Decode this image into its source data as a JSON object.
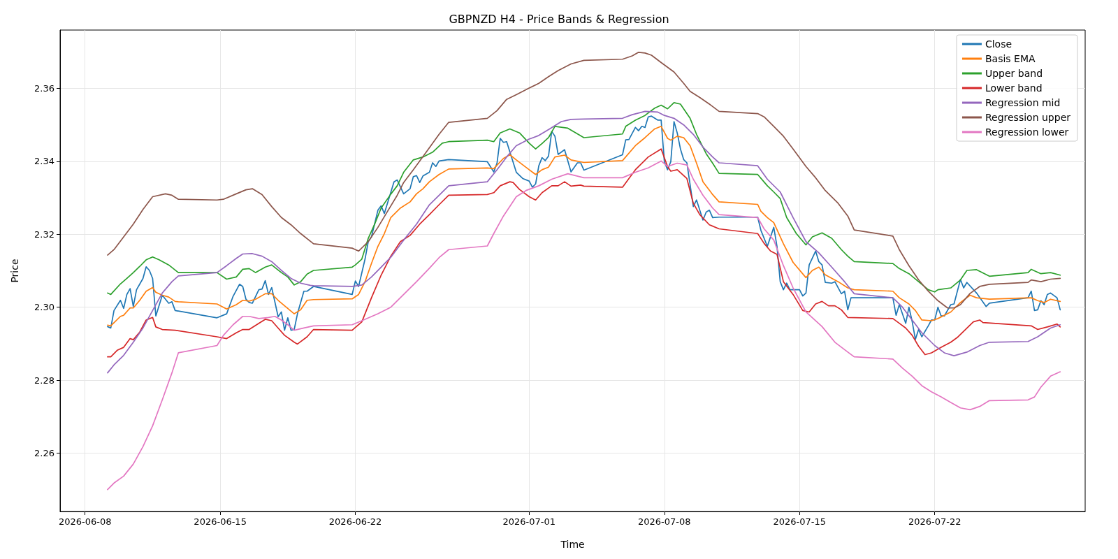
{
  "chart_data": {
    "type": "line",
    "title": "GBPNZD H4 - Price Bands & Regression",
    "xlabel": "Time",
    "ylabel": "Price",
    "xlim": [
      "2026-06-06T17:00",
      "2026-07-29T19:00"
    ],
    "xticks": [
      "2026-06-08",
      "2026-06-15",
      "2026-06-22",
      "2026-07-01",
      "2026-07-08",
      "2026-07-15",
      "2026-07-22"
    ],
    "ylim": [
      2.244,
      2.376
    ],
    "yticks": [
      2.26,
      2.28,
      {
        "value": 2.3,
        "label": "2.30"
      },
      2.32,
      2.34,
      2.36
    ],
    "grid": true,
    "legend": "top right",
    "line_style": "solid",
    "series": [
      {
        "name": "Close",
        "color": "#1f77b4",
        "x": [
          "2026-06-09T04:00",
          "2026-06-09T08:00",
          "2026-06-09T12:00",
          "2026-06-09T20:00",
          "2026-06-10T00:00",
          "2026-06-10T04:00",
          "2026-06-10T08:00",
          "2026-06-10T12:00",
          "2026-06-10T16:00",
          "2026-06-11T00:00",
          "2026-06-11T04:00",
          "2026-06-11T08:00",
          "2026-06-11T12:00",
          "2026-06-11T16:00",
          "2026-06-12T00:00",
          "2026-06-12T08:00",
          "2026-06-12T12:00",
          "2026-06-12T16:00",
          "2026-06-14T20:00",
          "2026-06-15T08:00",
          "2026-06-15T16:00",
          "2026-06-16T00:00",
          "2026-06-16T04:00",
          "2026-06-16T08:00",
          "2026-06-16T12:00",
          "2026-06-16T16:00",
          "2026-06-17T00:00",
          "2026-06-17T04:00",
          "2026-06-17T08:00",
          "2026-06-17T12:00",
          "2026-06-17T16:00",
          "2026-06-18T00:00",
          "2026-06-18T04:00",
          "2026-06-18T08:00",
          "2026-06-18T12:00",
          "2026-06-18T16:00",
          "2026-06-18T20:00",
          "2026-06-19T00:00",
          "2026-06-19T08:00",
          "2026-06-19T12:00",
          "2026-06-19T20:00",
          "2026-06-21T20:00",
          "2026-06-22T00:00",
          "2026-06-22T04:00",
          "2026-06-22T12:00",
          "2026-06-22T16:00",
          "2026-06-22T20:00",
          "2026-06-23T04:00",
          "2026-06-23T08:00",
          "2026-06-23T12:00",
          "2026-06-24T00:00",
          "2026-06-24T04:00",
          "2026-06-24T12:00",
          "2026-06-24T20:00",
          "2026-06-25T00:00",
          "2026-06-25T04:00",
          "2026-06-25T08:00",
          "2026-06-25T12:00",
          "2026-06-25T20:00",
          "2026-06-26T00:00",
          "2026-06-26T04:00",
          "2026-06-26T08:00",
          "2026-06-26T20:00",
          "2026-06-28T20:00",
          "2026-06-29T04:00",
          "2026-06-29T08:00",
          "2026-06-29T12:00",
          "2026-06-29T16:00",
          "2026-06-29T20:00",
          "2026-06-30T08:00",
          "2026-06-30T16:00",
          "2026-07-01T00:00",
          "2026-07-01T04:00",
          "2026-07-01T08:00",
          "2026-07-01T12:00",
          "2026-07-01T16:00",
          "2026-07-01T20:00",
          "2026-07-02T00:00",
          "2026-07-02T04:00",
          "2026-07-02T08:00",
          "2026-07-02T12:00",
          "2026-07-02T20:00",
          "2026-07-03T04:00",
          "2026-07-03T12:00",
          "2026-07-03T16:00",
          "2026-07-03T20:00",
          "2026-07-05T20:00",
          "2026-07-06T00:00",
          "2026-07-06T04:00",
          "2026-07-06T12:00",
          "2026-07-06T16:00",
          "2026-07-06T20:00",
          "2026-07-07T00:00",
          "2026-07-07T04:00",
          "2026-07-07T08:00",
          "2026-07-07T16:00",
          "2026-07-07T20:00",
          "2026-07-08T00:00",
          "2026-07-08T04:00",
          "2026-07-08T08:00",
          "2026-07-08T12:00",
          "2026-07-08T16:00",
          "2026-07-08T20:00",
          "2026-07-09T00:00",
          "2026-07-09T04:00",
          "2026-07-09T12:00",
          "2026-07-09T16:00",
          "2026-07-10T00:00",
          "2026-07-10T04:00",
          "2026-07-10T08:00",
          "2026-07-10T12:00",
          "2026-07-10T20:00",
          "2026-07-12T20:00",
          "2026-07-13T00:00",
          "2026-07-13T08:00",
          "2026-07-13T16:00",
          "2026-07-13T20:00",
          "2026-07-14T00:00",
          "2026-07-14T04:00",
          "2026-07-14T08:00",
          "2026-07-14T12:00",
          "2026-07-15T00:00",
          "2026-07-15T04:00",
          "2026-07-15T08:00",
          "2026-07-15T12:00",
          "2026-07-15T20:00",
          "2026-07-16T00:00",
          "2026-07-16T04:00",
          "2026-07-16T08:00",
          "2026-07-16T16:00",
          "2026-07-16T20:00",
          "2026-07-17T04:00",
          "2026-07-17T08:00",
          "2026-07-17T12:00",
          "2026-07-17T16:00",
          "2026-07-19T20:00",
          "2026-07-20T00:00",
          "2026-07-20T04:00",
          "2026-07-20T12:00",
          "2026-07-20T16:00",
          "2026-07-20T20:00",
          "2026-07-21T00:00",
          "2026-07-21T04:00",
          "2026-07-21T08:00",
          "2026-07-21T16:00",
          "2026-07-21T20:00",
          "2026-07-22T00:00",
          "2026-07-22T04:00",
          "2026-07-22T08:00",
          "2026-07-22T12:00",
          "2026-07-22T20:00",
          "2026-07-23T00:00",
          "2026-07-23T08:00",
          "2026-07-23T12:00",
          "2026-07-23T16:00",
          "2026-07-24T04:00",
          "2026-07-24T16:00",
          "2026-07-24T20:00",
          "2026-07-26T20:00",
          "2026-07-27T00:00",
          "2026-07-27T04:00",
          "2026-07-27T08:00",
          "2026-07-27T12:00",
          "2026-07-27T16:00",
          "2026-07-27T20:00",
          "2026-07-28T00:00",
          "2026-07-28T08:00",
          "2026-07-28T12:00"
        ],
        "values": [
          2.2947,
          2.2943,
          2.2991,
          2.3019,
          2.2997,
          2.3035,
          2.3051,
          2.3002,
          2.3048,
          2.3079,
          2.3111,
          2.3101,
          2.3079,
          2.2976,
          2.3033,
          2.3011,
          2.3015,
          2.2991,
          2.2971,
          2.2982,
          2.303,
          2.3063,
          2.3057,
          2.3022,
          2.3013,
          2.3011,
          2.3048,
          2.305,
          2.3073,
          2.3035,
          2.3054,
          2.2974,
          2.2987,
          2.2937,
          2.2971,
          2.2937,
          2.2939,
          2.2982,
          2.3044,
          2.3044,
          2.3057,
          2.3035,
          2.3072,
          2.3057,
          2.3132,
          2.318,
          2.3193,
          2.3266,
          2.3278,
          2.3257,
          2.3344,
          2.3349,
          2.3311,
          2.3325,
          2.3358,
          2.3361,
          2.3342,
          2.336,
          2.337,
          2.3396,
          2.3386,
          2.3401,
          2.3405,
          2.3399,
          2.3371,
          2.3395,
          2.3463,
          2.3452,
          2.3454,
          2.337,
          2.3353,
          2.3346,
          2.3329,
          2.3338,
          2.3388,
          2.341,
          2.3402,
          2.3414,
          2.3482,
          2.3469,
          2.3419,
          2.3432,
          2.3371,
          2.3396,
          2.3396,
          2.3376,
          2.3418,
          2.3459,
          2.346,
          2.3493,
          2.3484,
          2.3496,
          2.3493,
          2.3522,
          2.3524,
          2.3513,
          2.3513,
          2.3399,
          2.3377,
          2.3399,
          2.3509,
          2.3478,
          2.3434,
          2.3405,
          2.3396,
          2.3276,
          2.3294,
          2.3239,
          2.3261,
          2.3266,
          2.3246,
          2.3247,
          2.3247,
          2.3211,
          2.3167,
          2.3219,
          2.3167,
          2.307,
          2.3048,
          2.3066,
          2.3048,
          2.3048,
          2.3031,
          2.3039,
          2.3116,
          2.3154,
          2.3125,
          2.3116,
          2.3068,
          2.3066,
          2.307,
          2.3037,
          2.3044,
          2.2993,
          2.3026,
          2.3026,
          2.2978,
          2.3007,
          2.2956,
          2.3,
          2.2961,
          2.2912,
          2.2939,
          2.2919,
          2.2949,
          2.2965,
          2.2965,
          2.3,
          2.2976,
          2.2976,
          2.3007,
          2.3009,
          2.3076,
          2.3053,
          2.3068,
          2.3039,
          2.3002,
          2.3011,
          2.3026,
          2.3044,
          2.2991,
          2.2993,
          2.3018,
          2.3007,
          2.3035,
          2.3039,
          2.3026,
          2.2993
        ]
      },
      {
        "name": "Basis EMA",
        "color": "#ff7f0e",
        "x": [
          "2026-06-09T04:00",
          "2026-06-09T08:00",
          "2026-06-09T20:00",
          "2026-06-10T00:00",
          "2026-06-10T08:00",
          "2026-06-10T12:00",
          "2026-06-10T20:00",
          "2026-06-11T04:00",
          "2026-06-11T12:00",
          "2026-06-11T16:00",
          "2026-06-12T00:00",
          "2026-06-12T08:00",
          "2026-06-12T16:00",
          "2026-06-12T20:00",
          "2026-06-14T20:00",
          "2026-06-15T08:00",
          "2026-06-15T20:00",
          "2026-06-16T04:00",
          "2026-06-16T12:00",
          "2026-06-16T20:00",
          "2026-06-17T08:00",
          "2026-06-17T16:00",
          "2026-06-18T00:00",
          "2026-06-18T08:00",
          "2026-06-18T20:00",
          "2026-06-19T04:00",
          "2026-06-19T12:00",
          "2026-06-19T20:00",
          "2026-06-21T20:00",
          "2026-06-22T04:00",
          "2026-06-22T12:00",
          "2026-06-22T20:00",
          "2026-06-23T04:00",
          "2026-06-23T12:00",
          "2026-06-23T20:00",
          "2026-06-24T08:00",
          "2026-06-24T20:00",
          "2026-06-25T04:00",
          "2026-06-25T12:00",
          "2026-06-25T20:00",
          "2026-06-26T08:00",
          "2026-06-26T20:00",
          "2026-06-28T20:00",
          "2026-06-29T04:00",
          "2026-06-29T16:00",
          "2026-06-30T00:00",
          "2026-06-30T08:00",
          "2026-07-01T00:00",
          "2026-07-01T08:00",
          "2026-07-01T16:00",
          "2026-07-02T00:00",
          "2026-07-02T08:00",
          "2026-07-02T20:00",
          "2026-07-03T04:00",
          "2026-07-03T20:00",
          "2026-07-05T20:00",
          "2026-07-06T12:00",
          "2026-07-07T00:00",
          "2026-07-07T12:00",
          "2026-07-07T20:00",
          "2026-07-08T04:00",
          "2026-07-08T08:00",
          "2026-07-08T16:00",
          "2026-07-09T00:00",
          "2026-07-09T08:00",
          "2026-07-09T16:00",
          "2026-07-10T00:00",
          "2026-07-10T12:00",
          "2026-07-10T20:00",
          "2026-07-12T20:00",
          "2026-07-13T00:00",
          "2026-07-13T08:00",
          "2026-07-13T16:00",
          "2026-07-14T04:00",
          "2026-07-14T16:00",
          "2026-07-15T08:00",
          "2026-07-15T16:00",
          "2026-07-16T00:00",
          "2026-07-16T08:00",
          "2026-07-17T00:00",
          "2026-07-17T12:00",
          "2026-07-17T20:00",
          "2026-07-19T20:00",
          "2026-07-20T04:00",
          "2026-07-20T16:00",
          "2026-07-21T00:00",
          "2026-07-21T08:00",
          "2026-07-21T20:00",
          "2026-07-22T04:00",
          "2026-07-22T20:00",
          "2026-07-23T08:00",
          "2026-07-23T20:00",
          "2026-07-24T04:00",
          "2026-07-24T20:00",
          "2026-07-27T00:00",
          "2026-07-27T08:00",
          "2026-07-27T16:00",
          "2026-07-28T00:00",
          "2026-07-28T12:00"
        ],
        "values": [
          2.2951,
          2.2949,
          2.2975,
          2.2978,
          2.2998,
          2.2998,
          2.3019,
          2.3044,
          2.3054,
          2.3041,
          2.3033,
          2.3028,
          2.3016,
          2.3015,
          2.3009,
          2.2995,
          2.3007,
          2.3019,
          2.3017,
          2.3022,
          2.3037,
          2.3037,
          2.3019,
          2.3004,
          2.2982,
          2.2993,
          2.3019,
          2.3021,
          2.3023,
          2.3035,
          2.307,
          2.312,
          2.3167,
          2.3202,
          2.3246,
          2.3272,
          2.3289,
          2.3311,
          2.3325,
          2.3344,
          2.3364,
          2.3379,
          2.3382,
          2.338,
          2.3408,
          2.3418,
          2.3404,
          2.3377,
          2.3364,
          2.3377,
          2.3384,
          2.3412,
          2.3417,
          2.3404,
          2.3397,
          2.3402,
          2.3443,
          2.3465,
          2.3489,
          2.3496,
          2.3463,
          2.3458,
          2.3469,
          2.3465,
          2.3443,
          2.3395,
          2.3344,
          2.3309,
          2.3289,
          2.3282,
          2.3263,
          2.3246,
          2.3232,
          2.3174,
          2.3123,
          2.3081,
          2.3101,
          2.311,
          2.3089,
          2.307,
          2.3053,
          2.3048,
          2.3044,
          2.3026,
          2.3009,
          2.2991,
          2.2965,
          2.2963,
          2.2969,
          2.2987,
          2.3013,
          2.3033,
          2.3026,
          2.3022,
          2.3026,
          2.3018,
          2.3013,
          2.3022,
          2.3016
        ]
      },
      {
        "name": "Upper band",
        "color": "#2ca02c",
        "x": [
          "2026-06-09T04:00",
          "2026-06-09T08:00",
          "2026-06-09T20:00",
          "2026-06-10T04:00",
          "2026-06-10T12:00",
          "2026-06-10T20:00",
          "2026-06-11T04:00",
          "2026-06-11T12:00",
          "2026-06-11T20:00",
          "2026-06-12T08:00",
          "2026-06-12T20:00",
          "2026-06-14T20:00",
          "2026-06-15T08:00",
          "2026-06-15T20:00",
          "2026-06-16T04:00",
          "2026-06-16T12:00",
          "2026-06-16T20:00",
          "2026-06-17T08:00",
          "2026-06-17T16:00",
          "2026-06-18T04:00",
          "2026-06-18T12:00",
          "2026-06-18T20:00",
          "2026-06-19T04:00",
          "2026-06-19T12:00",
          "2026-06-19T20:00",
          "2026-06-21T20:00",
          "2026-06-22T00:00",
          "2026-06-22T08:00",
          "2026-06-22T16:00",
          "2026-06-23T00:00",
          "2026-06-23T08:00",
          "2026-06-23T20:00",
          "2026-06-24T04:00",
          "2026-06-24T12:00",
          "2026-06-25T00:00",
          "2026-06-25T12:00",
          "2026-06-26T00:00",
          "2026-06-26T12:00",
          "2026-06-26T20:00",
          "2026-06-28T20:00",
          "2026-06-29T04:00",
          "2026-06-29T12:00",
          "2026-06-30T00:00",
          "2026-06-30T12:00",
          "2026-07-01T00:00",
          "2026-07-01T08:00",
          "2026-07-01T16:00",
          "2026-07-02T00:00",
          "2026-07-02T08:00",
          "2026-07-03T00:00",
          "2026-07-03T20:00",
          "2026-07-05T20:00",
          "2026-07-06T00:00",
          "2026-07-06T12:00",
          "2026-07-07T00:00",
          "2026-07-07T12:00",
          "2026-07-07T20:00",
          "2026-07-08T04:00",
          "2026-07-08T12:00",
          "2026-07-08T20:00",
          "2026-07-09T08:00",
          "2026-07-09T16:00",
          "2026-07-10T04:00",
          "2026-07-10T12:00",
          "2026-07-10T20:00",
          "2026-07-12T20:00",
          "2026-07-13T08:00",
          "2026-07-13T16:00",
          "2026-07-14T00:00",
          "2026-07-14T08:00",
          "2026-07-14T20:00",
          "2026-07-15T08:00",
          "2026-07-15T16:00",
          "2026-07-16T04:00",
          "2026-07-16T16:00",
          "2026-07-17T04:00",
          "2026-07-17T12:00",
          "2026-07-17T20:00",
          "2026-07-19T20:00",
          "2026-07-20T04:00",
          "2026-07-20T16:00",
          "2026-07-21T04:00",
          "2026-07-21T16:00",
          "2026-07-22T00:00",
          "2026-07-22T04:00",
          "2026-07-22T20:00",
          "2026-07-23T08:00",
          "2026-07-23T16:00",
          "2026-07-24T04:00",
          "2026-07-24T20:00",
          "2026-07-26T20:00",
          "2026-07-27T00:00",
          "2026-07-27T12:00",
          "2026-07-28T00:00",
          "2026-07-28T12:00"
        ],
        "values": [
          2.3039,
          2.3035,
          2.3064,
          2.3079,
          2.3095,
          2.3112,
          2.313,
          2.3138,
          2.313,
          2.3116,
          2.3095,
          2.3095,
          2.3077,
          2.3083,
          2.3104,
          2.3106,
          2.3095,
          2.311,
          2.3116,
          2.3095,
          2.3083,
          2.3061,
          2.307,
          2.3091,
          2.3101,
          2.311,
          2.3116,
          2.3132,
          2.3189,
          2.3228,
          2.3272,
          2.331,
          2.3333,
          2.337,
          2.3404,
          2.3412,
          2.3425,
          2.345,
          2.3454,
          2.3458,
          2.3454,
          2.3478,
          2.3489,
          2.3478,
          2.345,
          2.3434,
          2.3449,
          2.3465,
          2.3496,
          2.3491,
          2.3465,
          2.3475,
          2.3496,
          2.3513,
          2.3526,
          2.3546,
          2.3554,
          2.3544,
          2.3561,
          2.3557,
          2.3518,
          2.3474,
          2.3421,
          2.3395,
          2.3367,
          2.3364,
          2.3333,
          2.3316,
          2.3298,
          2.3246,
          2.3202,
          2.3171,
          2.3193,
          2.3204,
          2.3189,
          2.3158,
          2.314,
          2.3125,
          2.312,
          2.3106,
          2.3092,
          2.307,
          2.3048,
          2.3042,
          2.3048,
          2.3053,
          2.3075,
          2.3101,
          2.3103,
          2.3085,
          2.3095,
          2.3104,
          2.3092,
          2.3095,
          2.3088
        ]
      },
      {
        "name": "Lower band",
        "color": "#d62728",
        "x": [
          "2026-06-09T04:00",
          "2026-06-09T08:00",
          "2026-06-09T16:00",
          "2026-06-10T00:00",
          "2026-06-10T08:00",
          "2026-06-10T12:00",
          "2026-06-10T20:00",
          "2026-06-11T04:00",
          "2026-06-11T12:00",
          "2026-06-11T16:00",
          "2026-06-12T00:00",
          "2026-06-12T16:00",
          "2026-06-14T20:00",
          "2026-06-15T08:00",
          "2026-06-15T20:00",
          "2026-06-16T04:00",
          "2026-06-16T12:00",
          "2026-06-17T00:00",
          "2026-06-17T08:00",
          "2026-06-17T16:00",
          "2026-06-18T00:00",
          "2026-06-18T08:00",
          "2026-06-18T20:00",
          "2026-06-19T00:00",
          "2026-06-19T12:00",
          "2026-06-19T20:00",
          "2026-06-21T20:00",
          "2026-06-22T08:00",
          "2026-06-22T20:00",
          "2026-06-23T08:00",
          "2026-06-23T20:00",
          "2026-06-24T08:00",
          "2026-06-24T20:00",
          "2026-06-25T08:00",
          "2026-06-25T20:00",
          "2026-06-26T08:00",
          "2026-06-26T20:00",
          "2026-06-28T20:00",
          "2026-06-29T04:00",
          "2026-06-29T12:00",
          "2026-06-30T00:00",
          "2026-06-30T04:00",
          "2026-06-30T12:00",
          "2026-07-01T00:00",
          "2026-07-01T08:00",
          "2026-07-01T16:00",
          "2026-07-02T04:00",
          "2026-07-02T12:00",
          "2026-07-02T20:00",
          "2026-07-03T04:00",
          "2026-07-03T16:00",
          "2026-07-03T20:00",
          "2026-07-05T20:00",
          "2026-07-06T12:00",
          "2026-07-07T04:00",
          "2026-07-07T20:00",
          "2026-07-08T04:00",
          "2026-07-08T08:00",
          "2026-07-08T16:00",
          "2026-07-09T04:00",
          "2026-07-09T12:00",
          "2026-07-09T20:00",
          "2026-07-10T08:00",
          "2026-07-10T20:00",
          "2026-07-12T20:00",
          "2026-07-13T04:00",
          "2026-07-13T12:00",
          "2026-07-13T20:00",
          "2026-07-14T04:00",
          "2026-07-14T16:00",
          "2026-07-15T04:00",
          "2026-07-15T12:00",
          "2026-07-15T20:00",
          "2026-07-16T04:00",
          "2026-07-16T12:00",
          "2026-07-16T20:00",
          "2026-07-17T04:00",
          "2026-07-17T12:00",
          "2026-07-19T20:00",
          "2026-07-20T04:00",
          "2026-07-20T12:00",
          "2026-07-20T20:00",
          "2026-07-21T04:00",
          "2026-07-21T12:00",
          "2026-07-21T20:00",
          "2026-07-22T08:00",
          "2026-07-22T20:00",
          "2026-07-23T04:00",
          "2026-07-23T12:00",
          "2026-07-24T00:00",
          "2026-07-24T08:00",
          "2026-07-24T12:00",
          "2026-07-27T00:00",
          "2026-07-27T08:00",
          "2026-07-27T20:00",
          "2026-07-28T08:00",
          "2026-07-28T12:00"
        ],
        "values": [
          2.2864,
          2.2864,
          2.2882,
          2.289,
          2.2914,
          2.2911,
          2.2932,
          2.2965,
          2.2972,
          2.2946,
          2.2939,
          2.2937,
          2.2919,
          2.2914,
          2.293,
          2.2939,
          2.2939,
          2.2956,
          2.2967,
          2.2963,
          2.2943,
          2.2923,
          2.2904,
          2.2899,
          2.2919,
          2.2939,
          2.2937,
          2.296,
          2.3026,
          2.3088,
          2.314,
          2.318,
          2.3197,
          2.3228,
          2.3254,
          2.3281,
          2.3307,
          2.3309,
          2.3314,
          2.3333,
          2.3344,
          2.3342,
          2.3323,
          2.3303,
          2.3294,
          2.3314,
          2.3333,
          2.3333,
          2.3344,
          2.3332,
          2.3335,
          2.3332,
          2.3329,
          2.3377,
          2.3412,
          2.3434,
          2.3386,
          2.3373,
          2.3377,
          2.3353,
          2.3285,
          2.3254,
          2.3226,
          2.3215,
          2.3202,
          2.3175,
          2.3154,
          2.3145,
          2.307,
          2.3035,
          2.2991,
          2.2987,
          2.3009,
          2.3016,
          2.3004,
          2.3004,
          2.2993,
          2.2972,
          2.2969,
          2.2956,
          2.2943,
          2.2923,
          2.2893,
          2.287,
          2.2875,
          2.289,
          2.2904,
          2.2917,
          2.2934,
          2.296,
          2.2965,
          2.2958,
          2.2949,
          2.2939,
          2.2946,
          2.2954,
          2.2946
        ]
      },
      {
        "name": "Regression mid",
        "color": "#9467bd",
        "x": [
          "2026-06-09T04:00",
          "2026-06-09T12:00",
          "2026-06-10T00:00",
          "2026-06-10T12:00",
          "2026-06-11T00:00",
          "2026-06-11T12:00",
          "2026-06-12T00:00",
          "2026-06-12T12:00",
          "2026-06-12T20:00",
          "2026-06-14T20:00",
          "2026-06-15T08:00",
          "2026-06-15T20:00",
          "2026-06-16T04:00",
          "2026-06-16T16:00",
          "2026-06-17T04:00",
          "2026-06-17T16:00",
          "2026-06-18T04:00",
          "2026-06-18T16:00",
          "2026-06-19T04:00",
          "2026-06-19T16:00",
          "2026-06-19T20:00",
          "2026-06-21T20:00",
          "2026-06-22T08:00",
          "2026-06-22T20:00",
          "2026-06-23T08:00",
          "2026-06-23T20:00",
          "2026-06-24T12:00",
          "2026-06-25T04:00",
          "2026-06-25T20:00",
          "2026-06-26T20:00",
          "2026-06-28T20:00",
          "2026-06-29T08:00",
          "2026-06-29T20:00",
          "2026-06-30T08:00",
          "2026-07-01T00:00",
          "2026-07-01T12:00",
          "2026-07-02T00:00",
          "2026-07-02T16:00",
          "2026-07-03T04:00",
          "2026-07-03T20:00",
          "2026-07-05T20:00",
          "2026-07-06T08:00",
          "2026-07-07T00:00",
          "2026-07-07T16:00",
          "2026-07-08T00:00",
          "2026-07-08T12:00",
          "2026-07-09T00:00",
          "2026-07-09T12:00",
          "2026-07-10T00:00",
          "2026-07-10T12:00",
          "2026-07-10T20:00",
          "2026-07-12T20:00",
          "2026-07-13T08:00",
          "2026-07-14T00:00",
          "2026-07-14T16:00",
          "2026-07-15T08:00",
          "2026-07-16T00:00",
          "2026-07-16T16:00",
          "2026-07-17T08:00",
          "2026-07-17T20:00",
          "2026-07-19T20:00",
          "2026-07-20T08:00",
          "2026-07-20T20:00",
          "2026-07-21T08:00",
          "2026-07-22T00:00",
          "2026-07-22T12:00",
          "2026-07-23T00:00",
          "2026-07-23T16:00",
          "2026-07-24T08:00",
          "2026-07-24T20:00",
          "2026-07-26T20:00",
          "2026-07-27T08:00",
          "2026-07-28T00:00",
          "2026-07-28T12:00"
        ],
        "values": [
          2.282,
          2.2842,
          2.2868,
          2.2904,
          2.2943,
          2.2991,
          2.3039,
          2.307,
          2.3086,
          2.3095,
          2.3114,
          2.3134,
          2.3146,
          2.3147,
          2.314,
          2.3125,
          2.3101,
          2.3079,
          2.3066,
          2.306,
          2.3059,
          2.3057,
          2.3061,
          2.3083,
          2.311,
          2.3137,
          2.3184,
          2.3228,
          2.3281,
          2.3333,
          2.3344,
          2.3377,
          2.3412,
          2.3443,
          2.3461,
          2.3471,
          2.3487,
          2.3509,
          2.3515,
          2.3516,
          2.3518,
          2.3528,
          2.3537,
          2.3535,
          2.3526,
          2.3518,
          2.35,
          2.3474,
          2.3439,
          2.3412,
          2.3396,
          2.3388,
          2.3351,
          2.3316,
          2.3246,
          2.318,
          2.3149,
          2.311,
          2.307,
          2.3037,
          2.3026,
          2.3,
          2.2965,
          2.293,
          2.2895,
          2.2875,
          2.2867,
          2.2877,
          2.2895,
          2.2904,
          2.2906,
          2.2919,
          2.2943,
          2.2952
        ]
      },
      {
        "name": "Regression upper",
        "color": "#8c564b",
        "x": [
          "2026-06-09T04:00",
          "2026-06-09T12:00",
          "2026-06-10T00:00",
          "2026-06-10T12:00",
          "2026-06-11T00:00",
          "2026-06-11T12:00",
          "2026-06-12T04:00",
          "2026-06-12T12:00",
          "2026-06-12T20:00",
          "2026-06-14T20:00",
          "2026-06-15T04:00",
          "2026-06-15T20:00",
          "2026-06-16T08:00",
          "2026-06-16T16:00",
          "2026-06-17T04:00",
          "2026-06-17T16:00",
          "2026-06-18T04:00",
          "2026-06-18T16:00",
          "2026-06-19T04:00",
          "2026-06-19T20:00",
          "2026-06-21T20:00",
          "2026-06-22T04:00",
          "2026-06-22T16:00",
          "2026-06-23T04:00",
          "2026-06-23T16:00",
          "2026-06-24T04:00",
          "2026-06-24T12:00",
          "2026-06-25T00:00",
          "2026-06-25T16:00",
          "2026-06-26T08:00",
          "2026-06-26T20:00",
          "2026-06-28T20:00",
          "2026-06-29T08:00",
          "2026-06-29T20:00",
          "2026-06-30T08:00",
          "2026-07-01T00:00",
          "2026-07-01T12:00",
          "2026-07-02T00:00",
          "2026-07-02T12:00",
          "2026-07-03T04:00",
          "2026-07-03T20:00",
          "2026-07-05T20:00",
          "2026-07-06T08:00",
          "2026-07-06T16:00",
          "2026-07-07T00:00",
          "2026-07-07T08:00",
          "2026-07-07T20:00",
          "2026-07-08T12:00",
          "2026-07-09T00:00",
          "2026-07-09T08:00",
          "2026-07-09T20:00",
          "2026-07-10T08:00",
          "2026-07-10T20:00",
          "2026-07-12T20:00",
          "2026-07-13T04:00",
          "2026-07-13T16:00",
          "2026-07-14T04:00",
          "2026-07-14T16:00",
          "2026-07-15T08:00",
          "2026-07-15T20:00",
          "2026-07-16T08:00",
          "2026-07-17T00:00",
          "2026-07-17T12:00",
          "2026-07-17T20:00",
          "2026-07-19T20:00",
          "2026-07-20T04:00",
          "2026-07-20T16:00",
          "2026-07-21T04:00",
          "2026-07-21T16:00",
          "2026-07-22T04:00",
          "2026-07-22T16:00",
          "2026-07-23T00:00",
          "2026-07-23T08:00",
          "2026-07-23T20:00",
          "2026-07-24T08:00",
          "2026-07-24T20:00",
          "2026-07-26T20:00",
          "2026-07-27T00:00",
          "2026-07-27T12:00",
          "2026-07-28T00:00",
          "2026-07-28T12:00"
        ],
        "values": [
          2.3143,
          2.3158,
          2.3193,
          2.3228,
          2.3268,
          2.3303,
          2.3311,
          2.3307,
          2.3296,
          2.3294,
          2.3296,
          2.3311,
          2.3322,
          2.3325,
          2.3309,
          2.3276,
          2.3246,
          2.3226,
          2.3202,
          2.3174,
          2.3162,
          2.3154,
          2.318,
          2.3219,
          2.3263,
          2.3307,
          2.3342,
          2.3377,
          2.3425,
          2.3474,
          2.3507,
          2.3518,
          2.3539,
          2.357,
          2.3583,
          2.3601,
          2.3614,
          2.3632,
          2.3649,
          2.3667,
          2.3677,
          2.368,
          2.3689,
          2.3699,
          2.3697,
          2.3691,
          2.3671,
          2.3645,
          2.3614,
          2.3592,
          2.3575,
          2.3557,
          2.3537,
          2.3531,
          2.3522,
          2.3496,
          2.3469,
          2.3434,
          2.3386,
          2.3355,
          2.332,
          2.3285,
          2.325,
          2.3212,
          2.3195,
          2.3158,
          2.3114,
          2.3075,
          2.3044,
          2.3018,
          2.2998,
          2.2998,
          2.3007,
          2.3038,
          2.3057,
          2.3063,
          2.3068,
          2.3075,
          2.307,
          2.3077,
          2.3079
        ]
      },
      {
        "name": "Regression lower",
        "color": "#e377c2",
        "x": [
          "2026-06-09T04:00",
          "2026-06-09T12:00",
          "2026-06-10T00:00",
          "2026-06-10T12:00",
          "2026-06-11T00:00",
          "2026-06-11T12:00",
          "2026-06-12T00:00",
          "2026-06-12T12:00",
          "2026-06-12T20:00",
          "2026-06-14T20:00",
          "2026-06-15T04:00",
          "2026-06-15T16:00",
          "2026-06-16T04:00",
          "2026-06-16T12:00",
          "2026-06-17T00:00",
          "2026-06-17T12:00",
          "2026-06-17T20:00",
          "2026-06-18T04:00",
          "2026-06-18T12:00",
          "2026-06-18T20:00",
          "2026-06-19T08:00",
          "2026-06-19T20:00",
          "2026-06-21T20:00",
          "2026-06-22T08:00",
          "2026-06-23T04:00",
          "2026-06-23T20:00",
          "2026-06-24T12:00",
          "2026-06-25T04:00",
          "2026-06-25T20:00",
          "2026-06-26T08:00",
          "2026-06-26T20:00",
          "2026-06-28T20:00",
          "2026-06-29T04:00",
          "2026-06-29T16:00",
          "2026-06-30T08:00",
          "2026-06-30T20:00",
          "2026-07-01T12:00",
          "2026-07-02T04:00",
          "2026-07-03T00:00",
          "2026-07-03T20:00",
          "2026-07-05T20:00",
          "2026-07-06T12:00",
          "2026-07-07T04:00",
          "2026-07-07T20:00",
          "2026-07-08T04:00",
          "2026-07-08T16:00",
          "2026-07-09T04:00",
          "2026-07-09T12:00",
          "2026-07-10T00:00",
          "2026-07-10T12:00",
          "2026-07-10T20:00",
          "2026-07-12T20:00",
          "2026-07-13T04:00",
          "2026-07-13T16:00",
          "2026-07-14T04:00",
          "2026-07-14T16:00",
          "2026-07-15T08:00",
          "2026-07-16T04:00",
          "2026-07-16T20:00",
          "2026-07-17T12:00",
          "2026-07-17T20:00",
          "2026-07-19T20:00",
          "2026-07-20T08:00",
          "2026-07-20T20:00",
          "2026-07-21T08:00",
          "2026-07-21T20:00",
          "2026-07-22T08:00",
          "2026-07-22T20:00",
          "2026-07-23T08:00",
          "2026-07-23T20:00",
          "2026-07-24T08:00",
          "2026-07-24T20:00",
          "2026-07-26T20:00",
          "2026-07-27T04:00",
          "2026-07-27T12:00",
          "2026-07-28T00:00",
          "2026-07-28T12:00"
        ],
        "values": [
          2.25,
          2.2518,
          2.2537,
          2.257,
          2.2618,
          2.2675,
          2.2746,
          2.282,
          2.2875,
          2.2895,
          2.2923,
          2.2952,
          2.2975,
          2.2975,
          2.2969,
          2.2972,
          2.2975,
          2.2965,
          2.2952,
          2.2937,
          2.2943,
          2.2949,
          2.2952,
          2.2963,
          2.2982,
          2.3,
          2.3035,
          2.307,
          2.3107,
          2.3136,
          2.3158,
          2.3168,
          2.3202,
          2.325,
          2.3303,
          2.332,
          2.3333,
          2.3351,
          2.3366,
          2.3355,
          2.3355,
          2.337,
          2.3382,
          2.3401,
          2.3386,
          2.3395,
          2.339,
          2.3351,
          2.3307,
          2.3272,
          2.3254,
          2.3246,
          2.3215,
          2.3184,
          2.3114,
          2.3053,
          2.2987,
          2.2947,
          2.2904,
          2.2877,
          2.2864,
          2.2858,
          2.2833,
          2.2811,
          2.2785,
          2.2768,
          2.2754,
          2.2739,
          2.2724,
          2.2719,
          2.2728,
          2.2744,
          2.2746,
          2.2754,
          2.2781,
          2.2811,
          2.2823
        ]
      }
    ]
  }
}
